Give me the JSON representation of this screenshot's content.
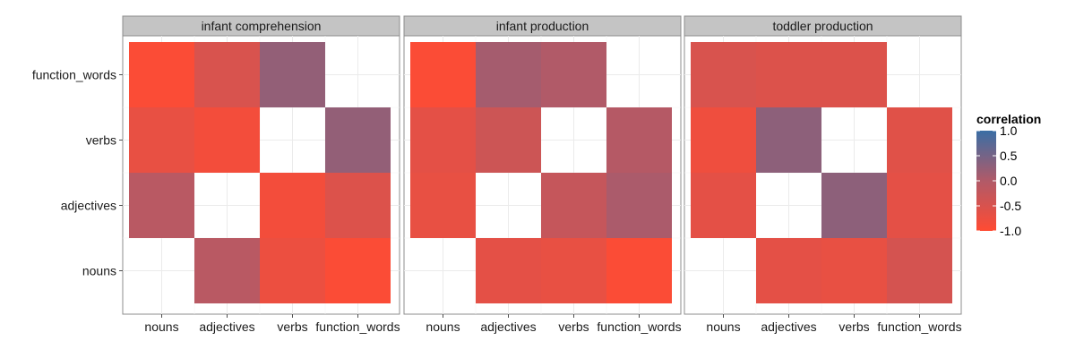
{
  "chart_data": {
    "type": "heatmap",
    "x_categories": [
      "nouns",
      "adjectives",
      "verbs",
      "function_words"
    ],
    "y_categories": [
      "nouns",
      "adjectives",
      "verbs",
      "function_words"
    ],
    "panels": [
      {
        "title": "infant comprehension",
        "cells": [
          {
            "x": "adjectives",
            "y": "nouns",
            "value": -0.1
          },
          {
            "x": "verbs",
            "y": "nouns",
            "value": -0.75
          },
          {
            "x": "function_words",
            "y": "nouns",
            "value": -0.95
          },
          {
            "x": "nouns",
            "y": "adjectives",
            "value": -0.1
          },
          {
            "x": "verbs",
            "y": "adjectives",
            "value": -0.85
          },
          {
            "x": "function_words",
            "y": "adjectives",
            "value": -0.55
          },
          {
            "x": "nouns",
            "y": "verbs",
            "value": -0.7
          },
          {
            "x": "adjectives",
            "y": "verbs",
            "value": -0.85
          },
          {
            "x": "function_words",
            "y": "verbs",
            "value": 0.25
          },
          {
            "x": "nouns",
            "y": "function_words",
            "value": -0.95
          },
          {
            "x": "adjectives",
            "y": "function_words",
            "value": -0.5
          },
          {
            "x": "verbs",
            "y": "function_words",
            "value": 0.25
          }
        ]
      },
      {
        "title": "infant production",
        "cells": [
          {
            "x": "adjectives",
            "y": "nouns",
            "value": -0.65
          },
          {
            "x": "verbs",
            "y": "nouns",
            "value": -0.7
          },
          {
            "x": "function_words",
            "y": "nouns",
            "value": -0.95
          },
          {
            "x": "nouns",
            "y": "adjectives",
            "value": -0.7
          },
          {
            "x": "verbs",
            "y": "adjectives",
            "value": -0.25
          },
          {
            "x": "function_words",
            "y": "adjectives",
            "value": 0.05
          },
          {
            "x": "nouns",
            "y": "verbs",
            "value": -0.65
          },
          {
            "x": "adjectives",
            "y": "verbs",
            "value": -0.35
          },
          {
            "x": "function_words",
            "y": "verbs",
            "value": -0.05
          },
          {
            "x": "nouns",
            "y": "function_words",
            "value": -0.95
          },
          {
            "x": "adjectives",
            "y": "function_words",
            "value": 0.1
          },
          {
            "x": "verbs",
            "y": "function_words",
            "value": 0.0
          }
        ]
      },
      {
        "title": "toddler production",
        "cells": [
          {
            "x": "adjectives",
            "y": "nouns",
            "value": -0.65
          },
          {
            "x": "verbs",
            "y": "nouns",
            "value": -0.7
          },
          {
            "x": "function_words",
            "y": "nouns",
            "value": -0.45
          },
          {
            "x": "nouns",
            "y": "adjectives",
            "value": -0.65
          },
          {
            "x": "verbs",
            "y": "adjectives",
            "value": 0.3
          },
          {
            "x": "function_words",
            "y": "adjectives",
            "value": -0.65
          },
          {
            "x": "nouns",
            "y": "verbs",
            "value": -0.8
          },
          {
            "x": "adjectives",
            "y": "verbs",
            "value": 0.3
          },
          {
            "x": "function_words",
            "y": "verbs",
            "value": -0.6
          },
          {
            "x": "nouns",
            "y": "function_words",
            "value": -0.5
          },
          {
            "x": "adjectives",
            "y": "function_words",
            "value": -0.55
          },
          {
            "x": "verbs",
            "y": "function_words",
            "value": -0.55
          }
        ]
      }
    ],
    "legend": {
      "title": "correlation",
      "ticks": [
        "1.0",
        "0.5",
        "0.0",
        "-0.5",
        "-1.0"
      ],
      "range": [
        -1,
        1
      ],
      "low_color": "#ff4b33",
      "high_color": "#3a6ea5",
      "placement": "right"
    },
    "grid": true
  }
}
